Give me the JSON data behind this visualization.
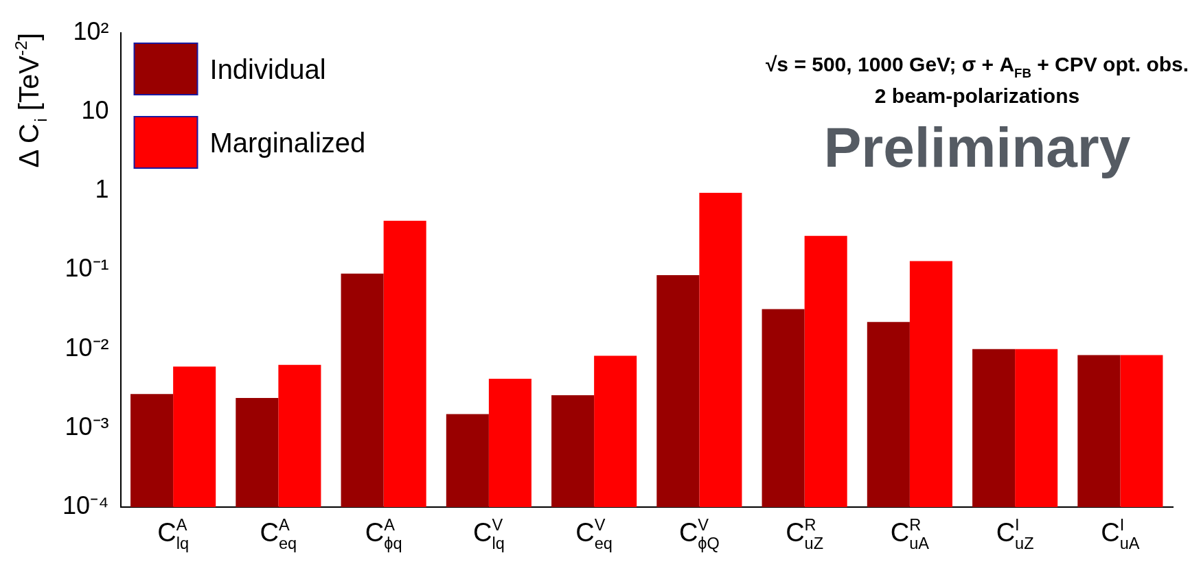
{
  "chart_data": {
    "type": "bar",
    "title": "√s = 500, 1000 GeV; σ + A$_{FB}$ + CPV opt. obs.",
    "subtitle": "2 beam-polarizations",
    "annotations": [
      "Preliminary"
    ],
    "ylabel": "Δ C$_{i}$ [TeV$^{-2}$]",
    "categories": [
      "C$_{lq}$$^{A}$",
      "C$_{eq}$$^{A}$",
      "C$_{ϕq}$$^{A}$",
      "C$_{lq}$$^{V}$",
      "C$_{eq}$$^{V}$",
      "C$_{ϕQ}$$^{V}$",
      "C$_{uZ}$$^{R}$",
      "C$_{uA}$$^{R}$",
      "C$_{uZ}$$^{I}$",
      "C$_{uA}$$^{I}$"
    ],
    "series": [
      {
        "name": "Individual",
        "color": "#990000",
        "values": [
          0.0027,
          0.0024,
          0.09,
          0.0015,
          0.0026,
          0.086,
          0.032,
          0.022,
          0.01,
          0.0084
        ]
      },
      {
        "name": "Marginalized",
        "color": "#ff0000",
        "values": [
          0.006,
          0.0063,
          0.42,
          0.0042,
          0.0082,
          0.95,
          0.27,
          0.13,
          0.01,
          0.0084
        ]
      }
    ],
    "log": "y",
    "ylim": [
      0.0001,
      100
    ],
    "yticks": [
      {
        "value": 0.0001,
        "label": "10⁻⁴"
      },
      {
        "value": 0.001,
        "label": "10⁻³"
      },
      {
        "value": 0.01,
        "label": "10⁻²"
      },
      {
        "value": 0.1,
        "label": "10⁻¹"
      },
      1,
      10,
      {
        "value": 100,
        "label": "10²"
      }
    ],
    "legend": "top left"
  }
}
